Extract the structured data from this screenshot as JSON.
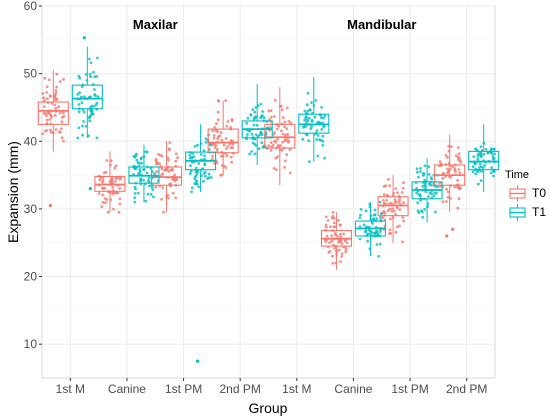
{
  "chart_data": {
    "type": "box",
    "xlabel": "Group",
    "ylabel": "Expansion (mm)",
    "ylim": [
      5,
      60
    ],
    "yticks": [
      10,
      20,
      30,
      40,
      50,
      60
    ],
    "grid": true,
    "legend": {
      "title": "Time",
      "position": "right",
      "entries": [
        "T0",
        "T1"
      ]
    },
    "panels": [
      "Maxilar",
      "Mandibular"
    ],
    "categories": [
      "1st M",
      "Canine",
      "1st PM",
      "2nd PM",
      "1st M",
      "Canine",
      "1st PM",
      "2nd PM"
    ],
    "series": [
      {
        "name": "T0",
        "color": "#F8766D",
        "boxes": [
          {
            "q1": 42.5,
            "median": 44.5,
            "q3": 45.8,
            "whisker_low": 38.5,
            "whisker_high": 50.5,
            "outliers": [
              30.5
            ]
          },
          {
            "q1": 32.6,
            "median": 33.6,
            "q3": 34.8,
            "whisker_low": 29.5,
            "whisker_high": 38.5,
            "outliers": []
          },
          {
            "q1": 33.5,
            "median": 34.7,
            "q3": 36.2,
            "whisker_low": 29.5,
            "whisker_high": 40.0,
            "outliers": []
          },
          {
            "q1": 38.3,
            "median": 39.8,
            "q3": 41.8,
            "whisker_low": 35.0,
            "whisker_high": 46.0,
            "outliers": []
          },
          {
            "q1": 39.0,
            "median": 40.6,
            "q3": 42.5,
            "whisker_low": 33.5,
            "whisker_high": 48.0,
            "outliers": []
          },
          {
            "q1": 24.5,
            "median": 25.6,
            "q3": 26.8,
            "whisker_low": 21.0,
            "whisker_high": 29.5,
            "outliers": []
          },
          {
            "q1": 29.0,
            "median": 30.5,
            "q3": 31.8,
            "whisker_low": 25.0,
            "whisker_high": 35.0,
            "outliers": []
          },
          {
            "q1": 33.5,
            "median": 35.0,
            "q3": 36.5,
            "whisker_low": 29.5,
            "whisker_high": 41.0,
            "outliers": [
              26.0,
              27.0
            ]
          }
        ]
      },
      {
        "name": "T1",
        "color": "#00BFC4",
        "boxes": [
          {
            "q1": 44.8,
            "median": 46.3,
            "q3": 48.3,
            "whisker_low": 40.5,
            "whisker_high": 54.0,
            "outliers": [
              55.3,
              33.0
            ]
          },
          {
            "q1": 33.8,
            "median": 34.9,
            "q3": 36.2,
            "whisker_low": 31.0,
            "whisker_high": 39.5,
            "outliers": []
          },
          {
            "q1": 35.8,
            "median": 37.1,
            "q3": 38.4,
            "whisker_low": 32.5,
            "whisker_high": 42.5,
            "outliers": [
              7.5
            ]
          },
          {
            "q1": 40.5,
            "median": 41.8,
            "q3": 43.0,
            "whisker_low": 36.5,
            "whisker_high": 48.5,
            "outliers": []
          },
          {
            "q1": 41.2,
            "median": 42.5,
            "q3": 44.0,
            "whisker_low": 37.0,
            "whisker_high": 49.5,
            "outliers": []
          },
          {
            "q1": 26.0,
            "median": 27.1,
            "q3": 28.2,
            "whisker_low": 23.0,
            "whisker_high": 31.0,
            "outliers": []
          },
          {
            "q1": 31.5,
            "median": 32.8,
            "q3": 34.0,
            "whisker_low": 28.0,
            "whisker_high": 37.5,
            "outliers": []
          },
          {
            "q1": 35.8,
            "median": 37.0,
            "q3": 38.5,
            "whisker_low": 32.5,
            "whisker_high": 42.5,
            "outliers": []
          }
        ]
      }
    ]
  }
}
